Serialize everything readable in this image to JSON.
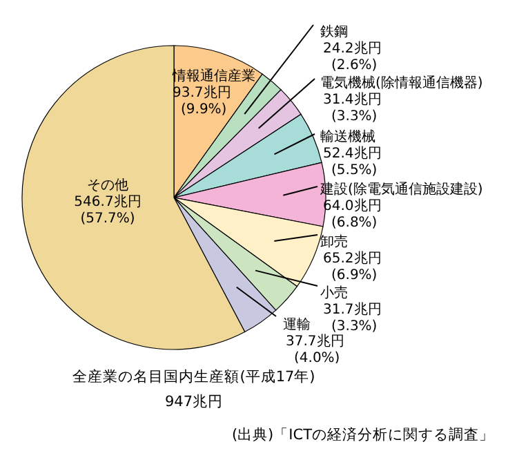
{
  "chart_data": {
    "type": "pie",
    "title": "全産業の名目国内生産額(平成17年)",
    "subtitle": "947兆円",
    "categories": [
      "情報通信産業",
      "鉄鋼",
      "電気機械(除情報通信機器)",
      "輸送機械",
      "建設(除電気通信施設建設)",
      "卸売",
      "小売",
      "運輸",
      "その他"
    ],
    "values": [
      93.7,
      24.2,
      31.4,
      52.4,
      64.0,
      65.2,
      31.7,
      37.7,
      546.7
    ],
    "value_labels": [
      "93.7兆円\n(9.9%)",
      "24.2兆円\n(2.6%)",
      "31.4兆円\n(3.3%)",
      "52.4兆円\n(5.5%)",
      "64.0兆円\n(6.8%)",
      "65.2兆円\n(6.9%)",
      "31.7兆円\n(3.3%)",
      "37.7兆円\n(4.0%)",
      "546.7兆円\n(57.7%)"
    ],
    "colors": [
      "#fccb8c",
      "#b8e0c0",
      "#e4c4e0",
      "#a8dcd8",
      "#f4b4d8",
      "#fff0c8",
      "#cce4c0",
      "#c8c8e0",
      "#f0d898"
    ],
    "annotations": [
      "(出典)「ICTの経済分析に関する調査」"
    ]
  }
}
